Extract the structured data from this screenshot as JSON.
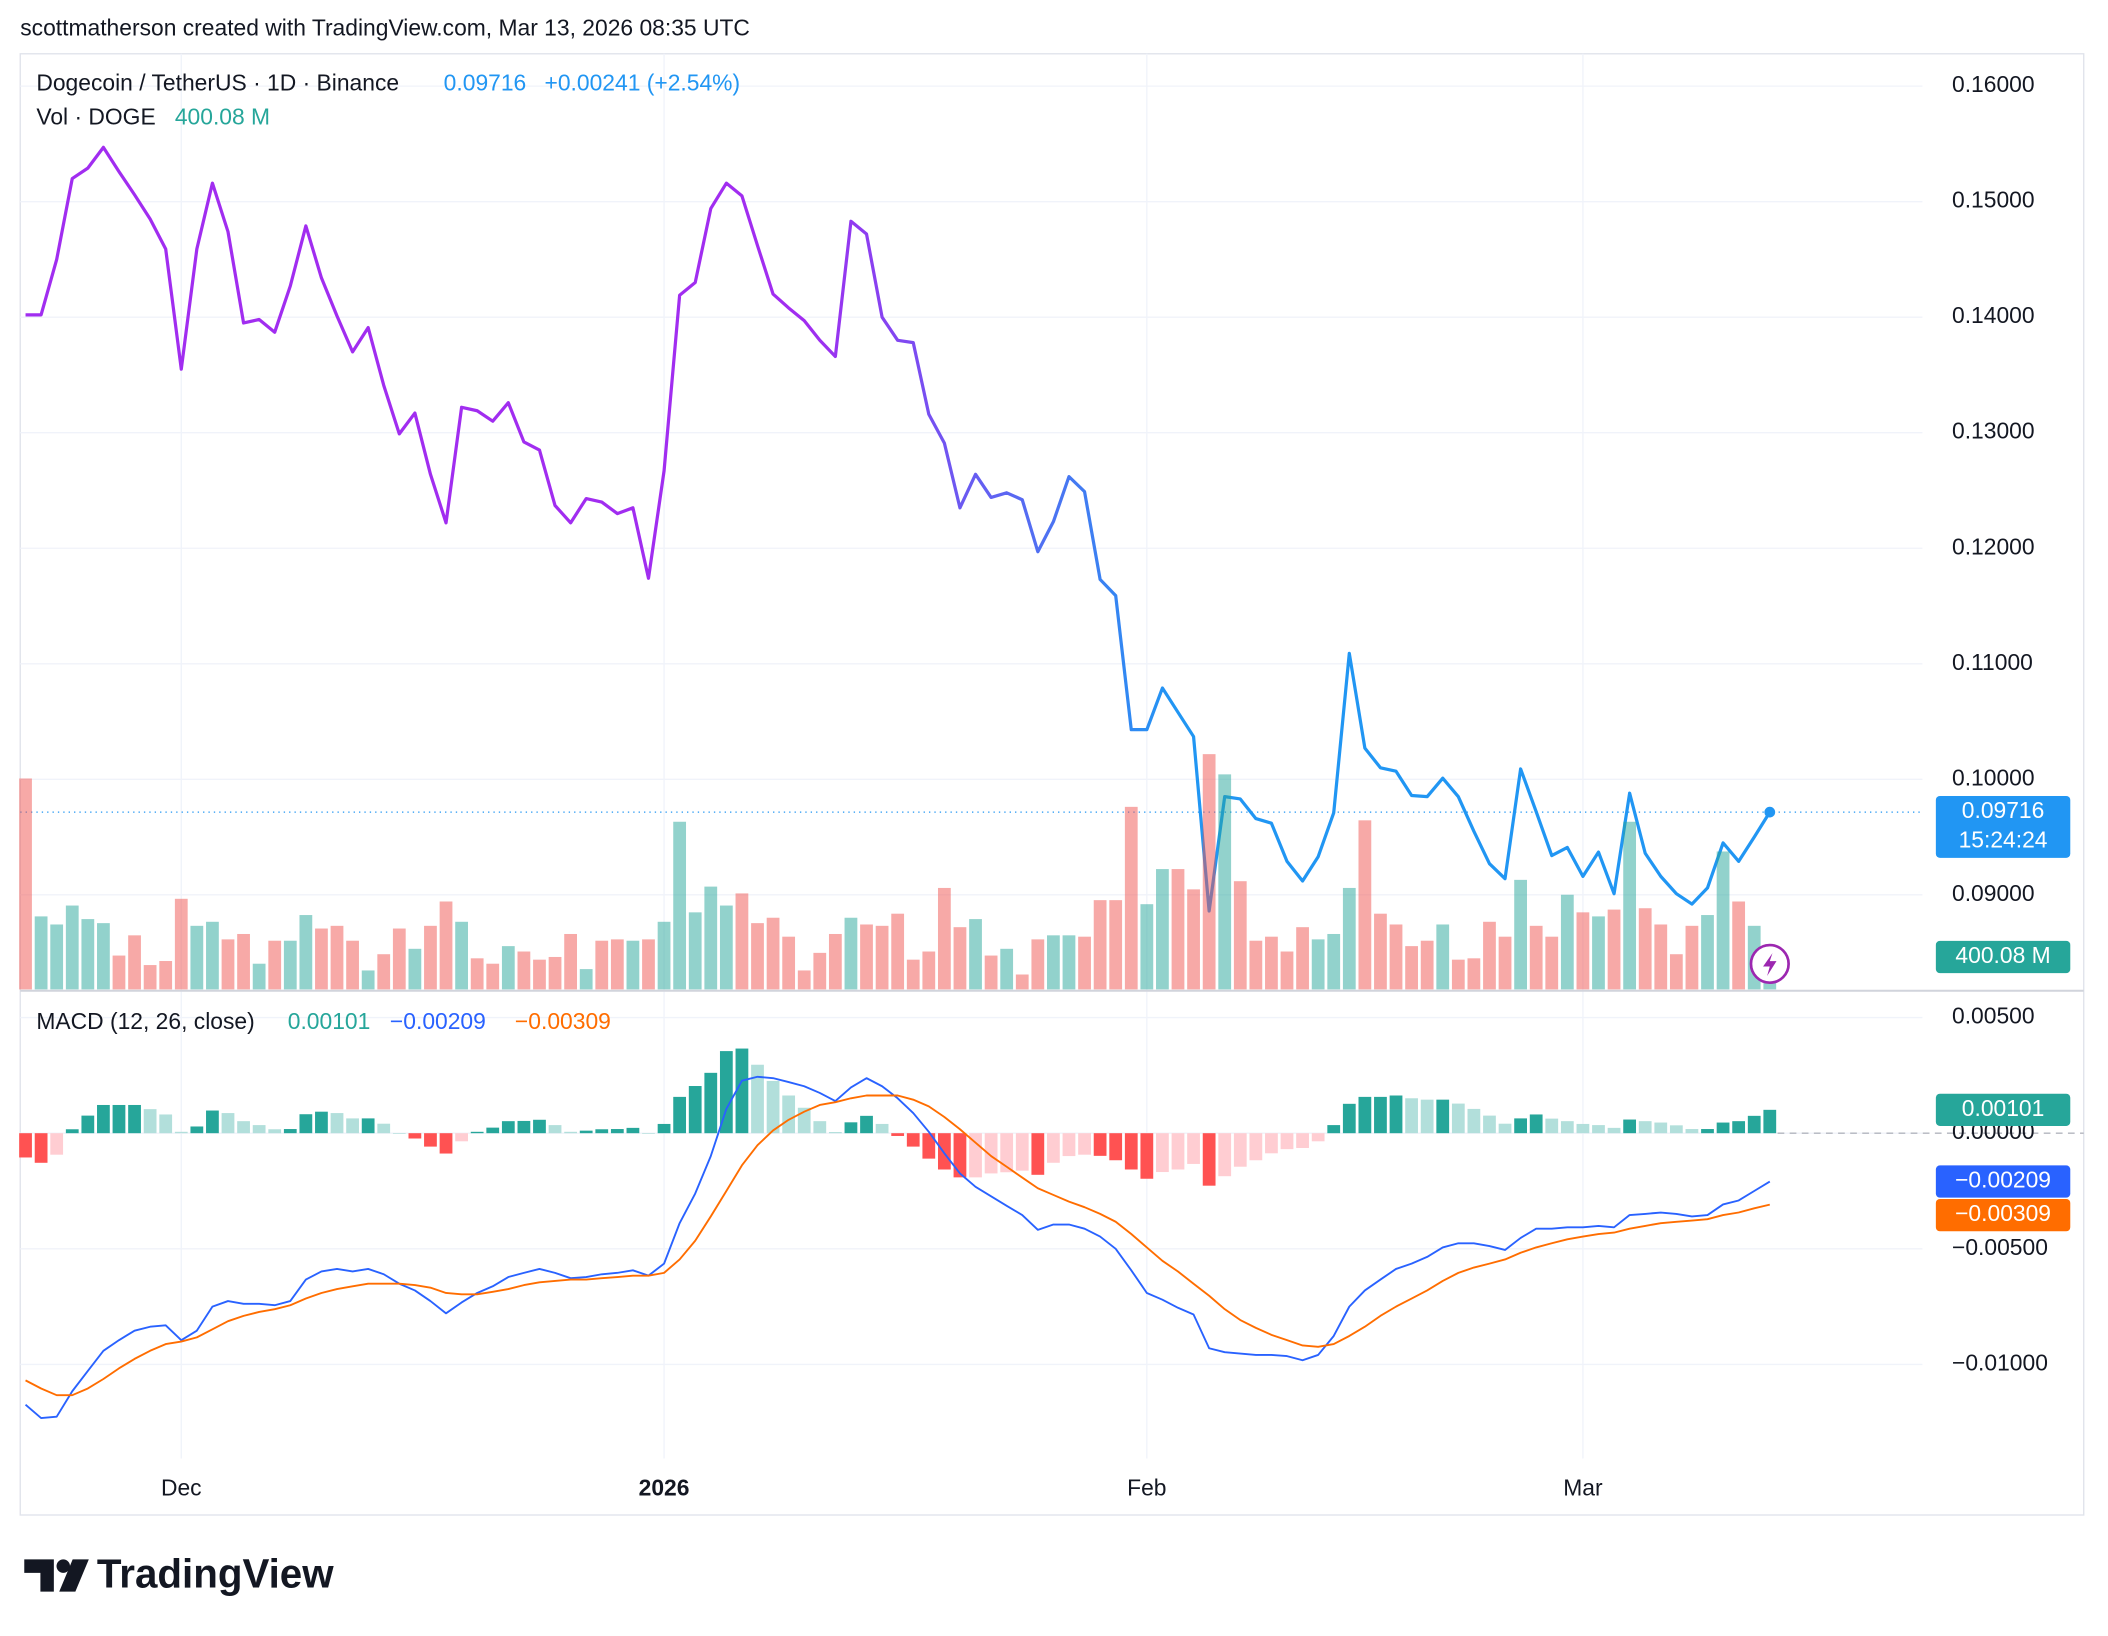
{
  "header": "scottmatherson created with TradingView.com, Mar 13, 2026 08:35 UTC",
  "brand": "TradingView",
  "chart_data": [
    {
      "type": "line",
      "title": "Dogecoin / TetherUS · 1D · Binance",
      "last_label": "0.09716",
      "change_label": "+0.00241 (+2.54%)",
      "countdown": "15:24:24",
      "colors": [
        "#a12df0",
        "#2196f3"
      ],
      "grid": true,
      "xlim": [
        -0.34,
        121.8
      ],
      "xticks": [
        {
          "value": 10,
          "label": "Dec"
        },
        {
          "value": 41,
          "label": "2026"
        },
        {
          "value": 72,
          "label": "Feb"
        },
        {
          "value": 100,
          "label": "Mar"
        }
      ],
      "ylim": [
        0.0817,
        0.1628
      ],
      "yticks": [
        {
          "value": 0.09,
          "label": "0.09000"
        },
        {
          "value": 0.1,
          "label": "0.10000"
        },
        {
          "value": 0.11,
          "label": "0.11000"
        },
        {
          "value": 0.12,
          "label": "0.12000"
        },
        {
          "value": 0.13,
          "label": "0.13000"
        },
        {
          "value": 0.14,
          "label": "0.14000"
        },
        {
          "value": 0.15,
          "label": "0.15000"
        },
        {
          "value": 0.16,
          "label": "0.16000"
        }
      ],
      "values": [
        0.1402,
        0.1402,
        0.145,
        0.152,
        0.1529,
        0.1547,
        0.1526,
        0.1506,
        0.1485,
        0.1459,
        0.1355,
        0.1459,
        0.1516,
        0.1474,
        0.1395,
        0.1398,
        0.1387,
        0.1427,
        0.1479,
        0.1434,
        0.1401,
        0.137,
        0.1391,
        0.1341,
        0.1299,
        0.1317,
        0.1264,
        0.1222,
        0.1322,
        0.1319,
        0.131,
        0.1326,
        0.1292,
        0.1285,
        0.1237,
        0.1222,
        0.1243,
        0.124,
        0.123,
        0.1235,
        0.1174,
        0.1267,
        0.1419,
        0.143,
        0.1494,
        0.1516,
        0.1505,
        0.1462,
        0.142,
        0.1408,
        0.1397,
        0.138,
        0.1366,
        0.1483,
        0.1472,
        0.14,
        0.138,
        0.1378,
        0.1316,
        0.1291,
        0.1235,
        0.1264,
        0.1244,
        0.1248,
        0.1242,
        0.1197,
        0.1223,
        0.1262,
        0.1249,
        0.1173,
        0.1159,
        0.1043,
        0.1043,
        0.1079,
        0.1058,
        0.1037,
        0.0886,
        0.0985,
        0.0983,
        0.0966,
        0.0962,
        0.0929,
        0.0912,
        0.0933,
        0.0971,
        0.1109,
        0.1027,
        0.101,
        0.1007,
        0.0986,
        0.0985,
        0.1001,
        0.0985,
        0.0955,
        0.0927,
        0.0914,
        0.1009,
        0.0972,
        0.0934,
        0.0941,
        0.0916,
        0.0937,
        0.0901,
        0.0988,
        0.0936,
        0.0916,
        0.0901,
        0.0892,
        0.0906,
        0.0945,
        0.0929,
        0.095,
        0.09716
      ]
    },
    {
      "type": "bar",
      "title": "Vol · DOGE",
      "value_label": "400.08 M",
      "up_color": "#26a69a",
      "down_color": "#ef5350",
      "values": [
        3285,
        1137,
        1011,
        1306,
        1095,
        1032,
        527,
        842,
        379,
        442,
        1411,
        990,
        1053,
        779,
        863,
        400,
        758,
        758,
        1158,
        948,
        990,
        758,
        295,
        548,
        948,
        632,
        990,
        1369,
        1053,
        484,
        400,
        674,
        590,
        463,
        505,
        863,
        316,
        758,
        779,
        758,
        779,
        1053,
        2611,
        1200,
        1601,
        1306,
        1495,
        1032,
        1116,
        821,
        295,
        569,
        863,
        1116,
        1011,
        990,
        1179,
        463,
        590,
        1580,
        969,
        1095,
        527,
        632,
        232,
        779,
        842,
        842,
        821,
        1390,
        1390,
        2843,
        1327,
        1874,
        1874,
        1558,
        3664,
        3349,
        1685,
        758,
        821,
        590,
        969,
        779,
        863,
        1580,
        2633,
        1179,
        1011,
        674,
        758,
        1011,
        463,
        484,
        1053,
        821,
        1706,
        990,
        821,
        1474,
        1200,
        1137,
        1243,
        2611,
        1264,
        1011,
        548,
        990,
        1158,
        2148,
        1369,
        990,
        400.08
      ]
    },
    {
      "type": "macd",
      "title": "MACD (12, 26, close)",
      "grid": true,
      "ylim": [
        -0.01407,
        0.00616
      ],
      "yticks": [
        {
          "value": 0.005,
          "label": "0.00500"
        },
        {
          "value": 0,
          "label": "0.00000"
        },
        {
          "value": -0.005,
          "label": "−0.00500"
        },
        {
          "value": -0.01,
          "label": "−0.01000"
        }
      ],
      "series": [
        {
          "type": "bar",
          "value_label": "0.00101",
          "colors": [
            "#26a69a",
            "#b2dfdb",
            "#ffcdd2",
            "#ff5252"
          ],
          "values": [
            -0.00105,
            -0.00128,
            -0.00093,
            0.00017,
            0.00076,
            0.00122,
            0.00122,
            0.00122,
            0.00104,
            0.00081,
            6e-05,
            0.00029,
            0.00098,
            0.00087,
            0.00052,
            0.00035,
            0.00017,
            0.00018,
            0.00082,
            0.00093,
            0.00087,
            0.00064,
            0.00064,
            0.00041,
            0,
            -0.00023,
            -0.00058,
            -0.00088,
            -0.00035,
            6e-05,
            0.00024,
            0.00052,
            0.00053,
            0.00058,
            0.00035,
            6e-05,
            0.00011,
            0.00017,
            0.00018,
            0.00023,
            0,
            0.0004,
            0.00157,
            0.00204,
            0.00261,
            0.00355,
            0.00366,
            0.00296,
            0.00226,
            0.00163,
            0.0011,
            0.00052,
            5e-05,
            0.00047,
            0.00075,
            0.0004,
            -0.00012,
            -0.00058,
            -0.0011,
            -0.00157,
            -0.00191,
            -0.00191,
            -0.00174,
            -0.00169,
            -0.00162,
            -0.0018,
            -0.00128,
            -0.00099,
            -0.00093,
            -0.00098,
            -0.00117,
            -0.00157,
            -0.00197,
            -0.00168,
            -0.00157,
            -0.00133,
            -0.00227,
            -0.00186,
            -0.00145,
            -0.00117,
            -0.00087,
            -0.00069,
            -0.00064,
            -0.00035,
            0.00035,
            0.00127,
            0.00157,
            0.00157,
            0.00163,
            0.00151,
            0.00145,
            0.00145,
            0.00128,
            0.00105,
            0.00076,
            0.00041,
            0.00064,
            0.00081,
            0.00063,
            0.00052,
            0.0004,
            0.00035,
            0.00023,
            0.00059,
            0.00052,
            0.00046,
            0.00034,
            0.00018,
            0.00018,
            0.00046,
            0.00052,
            0.00075,
            0.00101
          ]
        },
        {
          "type": "line",
          "value_label": "−0.00209",
          "color": "#2962ff",
          "values": [
            -0.01174,
            -0.01232,
            -0.01226,
            -0.01116,
            -0.01028,
            -0.00941,
            -0.00895,
            -0.00854,
            -0.00837,
            -0.00831,
            -0.00895,
            -0.00854,
            -0.0075,
            -0.00726,
            -0.00738,
            -0.00738,
            -0.00744,
            -0.00726,
            -0.00633,
            -0.00598,
            -0.00587,
            -0.00598,
            -0.00587,
            -0.0061,
            -0.00651,
            -0.0068,
            -0.00726,
            -0.00779,
            -0.00732,
            -0.00691,
            -0.00662,
            -0.00622,
            -0.00604,
            -0.00587,
            -0.00604,
            -0.00627,
            -0.00622,
            -0.0061,
            -0.00604,
            -0.00593,
            -0.00616,
            -0.00564,
            -0.00389,
            -0.00261,
            -0.00099,
            0.00105,
            0.00227,
            0.00244,
            0.00238,
            0.00221,
            0.00203,
            0.00174,
            0.00139,
            0.00198,
            0.00238,
            0.00203,
            0.00151,
            0.00087,
            6e-05,
            -0.00087,
            -0.00174,
            -0.00232,
            -0.00273,
            -0.00314,
            -0.00354,
            -0.00418,
            -0.00395,
            -0.00395,
            -0.00413,
            -0.00447,
            -0.005,
            -0.00593,
            -0.00691,
            -0.0072,
            -0.00755,
            -0.00784,
            -0.0093,
            -0.00947,
            -0.00953,
            -0.00959,
            -0.00959,
            -0.00964,
            -0.00982,
            -0.00959,
            -0.00877,
            -0.0075,
            -0.0068,
            -0.00633,
            -0.00587,
            -0.00564,
            -0.00535,
            -0.00494,
            -0.00476,
            -0.00476,
            -0.00488,
            -0.00505,
            -0.00453,
            -0.00413,
            -0.00413,
            -0.00407,
            -0.00407,
            -0.00401,
            -0.00407,
            -0.00354,
            -0.00349,
            -0.00343,
            -0.00349,
            -0.0036,
            -0.00354,
            -0.00308,
            -0.00291,
            -0.0025,
            -0.00209
          ]
        },
        {
          "type": "line",
          "value_label": "−0.00309",
          "color": "#ff6d00",
          "values": [
            -0.01069,
            -0.01104,
            -0.01133,
            -0.01133,
            -0.01104,
            -0.01063,
            -0.01017,
            -0.00976,
            -0.00941,
            -0.00912,
            -0.00901,
            -0.00883,
            -0.00848,
            -0.00813,
            -0.0079,
            -0.00773,
            -0.00761,
            -0.00744,
            -0.00715,
            -0.00691,
            -0.00674,
            -0.00662,
            -0.00651,
            -0.00651,
            -0.00651,
            -0.00657,
            -0.00668,
            -0.00691,
            -0.00697,
            -0.00697,
            -0.00686,
            -0.00674,
            -0.00657,
            -0.00645,
            -0.00639,
            -0.00633,
            -0.00633,
            -0.00627,
            -0.00622,
            -0.00616,
            -0.00616,
            -0.00604,
            -0.00546,
            -0.00465,
            -0.0036,
            -0.0025,
            -0.00139,
            -0.00052,
            0.00012,
            0.00058,
            0.00093,
            0.00122,
            0.00134,
            0.00151,
            0.00163,
            0.00163,
            0.00163,
            0.00145,
            0.00116,
            0.0007,
            0.00017,
            -0.00041,
            -0.00099,
            -0.00145,
            -0.00192,
            -0.00238,
            -0.00267,
            -0.00296,
            -0.0032,
            -0.00349,
            -0.00383,
            -0.00436,
            -0.00494,
            -0.00552,
            -0.00598,
            -0.00651,
            -0.00703,
            -0.00761,
            -0.00808,
            -0.00842,
            -0.00872,
            -0.00895,
            -0.00918,
            -0.00924,
            -0.00912,
            -0.00877,
            -0.00837,
            -0.0079,
            -0.0075,
            -0.00715,
            -0.0068,
            -0.00639,
            -0.00604,
            -0.00581,
            -0.00564,
            -0.00546,
            -0.00517,
            -0.00494,
            -0.00476,
            -0.00459,
            -0.00447,
            -0.00436,
            -0.0043,
            -0.00413,
            -0.00401,
            -0.00389,
            -0.00383,
            -0.00378,
            -0.00372,
            -0.00354,
            -0.00343,
            -0.00325,
            -0.00309
          ]
        }
      ]
    }
  ]
}
